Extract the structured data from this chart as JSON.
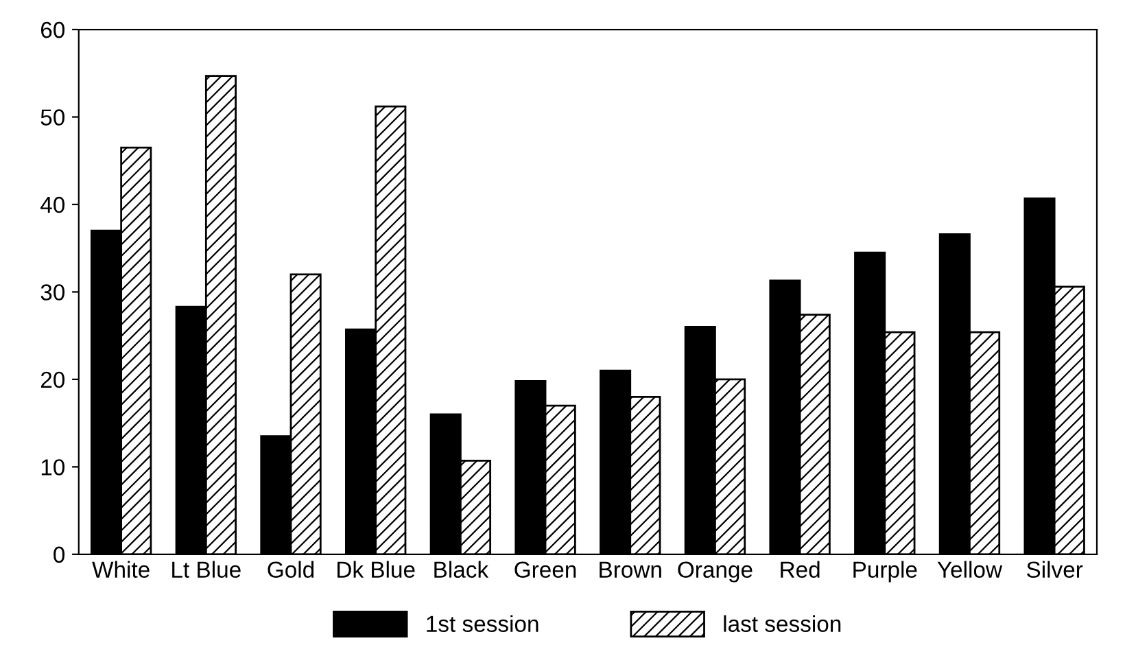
{
  "chart_data": {
    "type": "bar",
    "categories": [
      "White",
      "Lt Blue",
      "Gold",
      "Dk Blue",
      "Black",
      "Green",
      "Brown",
      "Orange",
      "Red",
      "Purple",
      "Yellow",
      "Silver"
    ],
    "series": [
      {
        "name": "1st session",
        "color": "#000000",
        "values": [
          37,
          28.3,
          13.5,
          25.7,
          16,
          19.8,
          21,
          26,
          31.3,
          34.5,
          36.6,
          40.7
        ]
      },
      {
        "name": "last session",
        "color": "#000000",
        "values": [
          46.5,
          54.7,
          32,
          51.2,
          10.7,
          17,
          18,
          20,
          27.4,
          25.4,
          25.4,
          30.6
        ]
      }
    ],
    "ylim": [
      0,
      60
    ],
    "yticks": [
      0,
      10,
      20,
      30,
      40,
      50,
      60
    ],
    "grid": false,
    "legend": "bottom"
  }
}
